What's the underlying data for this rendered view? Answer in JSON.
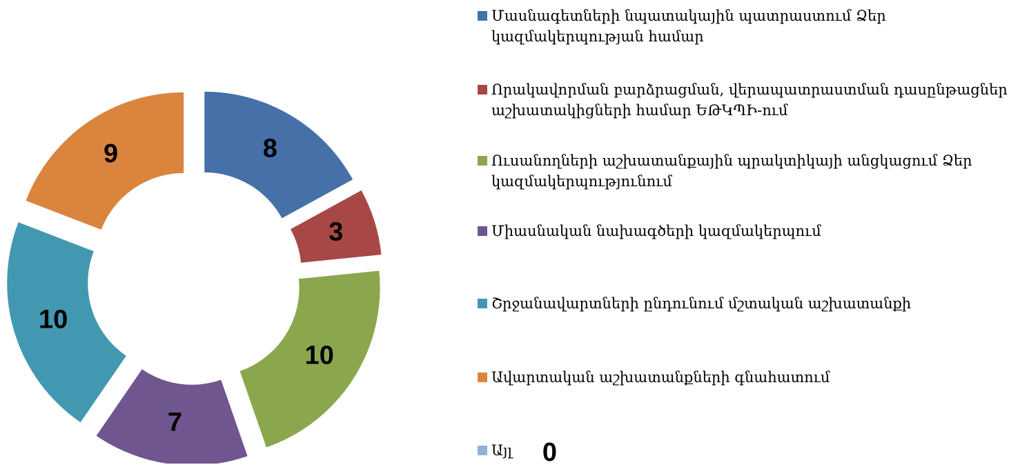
{
  "chart_data": {
    "type": "donut",
    "categories": [
      "Մասնագետների նպատակային պատրաստում Ձեր կազմակերպության համար",
      "Որակավորման բարձրացման, վերապատրաստման դասընթացներ աշխատակիցների համար ԵԹԿՊԻ-ում",
      "Ուսանողների աշխատանքային պրակտիկայի անցկացում Ձեր կազմակերպությունում",
      "Միասնական նախագծերի կազմակերպում",
      "Շրջանավարտների ընդունում մշտական աշխատանքի",
      "Ավարտական աշխատանքների գնահատում",
      "Այլ"
    ],
    "values": [
      8,
      3,
      10,
      7,
      10,
      9,
      0
    ],
    "colors": [
      "#4670a8",
      "#a84846",
      "#8ba74e",
      "#70568f",
      "#4298b0",
      "#db843e",
      "#95b0d7"
    ],
    "legend": "right"
  }
}
